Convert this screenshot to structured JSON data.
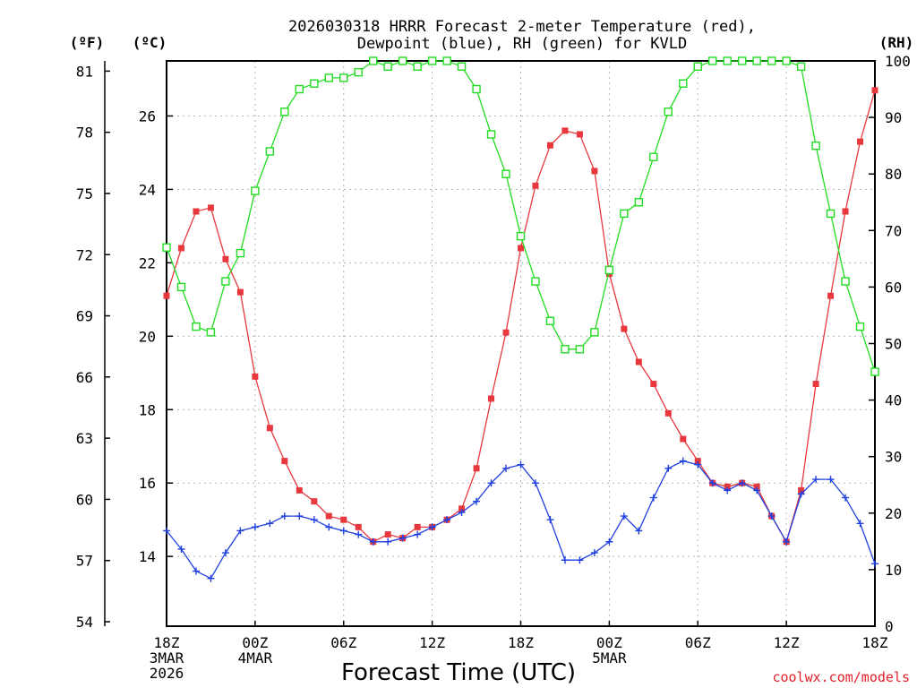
{
  "chart_data": {
    "type": "line",
    "title_line1": "2026030318 HRRR Forecast 2-meter Temperature (red),",
    "title_line2": "Dewpoint (blue), RH (green) for KVLD",
    "xlabel": "Forecast Time (UTC)",
    "credit": "coolwx.com/models",
    "unit_f": "(ºF)",
    "unit_c": "(ºC)",
    "unit_rh": "(RH)",
    "x_hours": [
      0,
      1,
      2,
      3,
      4,
      5,
      6,
      7,
      8,
      9,
      10,
      11,
      12,
      13,
      14,
      15,
      16,
      17,
      18,
      19,
      20,
      21,
      22,
      23,
      24,
      25,
      26,
      27,
      28,
      29,
      30,
      31,
      32,
      33,
      34,
      35,
      36,
      37,
      38,
      39,
      40,
      41,
      42,
      43,
      44,
      45,
      46,
      47,
      48
    ],
    "x_range_hours": [
      0,
      48
    ],
    "x_ticks": [
      {
        "hour": 0,
        "lines": [
          "18Z",
          "3MAR",
          "2026"
        ]
      },
      {
        "hour": 6,
        "lines": [
          "00Z",
          "4MAR"
        ]
      },
      {
        "hour": 12,
        "lines": [
          "06Z"
        ]
      },
      {
        "hour": 18,
        "lines": [
          "12Z"
        ]
      },
      {
        "hour": 24,
        "lines": [
          "18Z"
        ]
      },
      {
        "hour": 30,
        "lines": [
          "00Z",
          "5MAR"
        ]
      },
      {
        "hour": 36,
        "lines": [
          "06Z"
        ]
      },
      {
        "hour": 42,
        "lines": [
          "12Z"
        ]
      },
      {
        "hour": 48,
        "lines": [
          "18Z"
        ]
      }
    ],
    "y_celsius_range": [
      12.1,
      27.5
    ],
    "y_celsius_ticks": [
      "14",
      "16",
      "18",
      "20",
      "22",
      "24",
      "26"
    ],
    "y_fahrenheit_ticks": [
      "54",
      "57",
      "60",
      "63",
      "66",
      "69",
      "72",
      "75",
      "78",
      "81"
    ],
    "y_rh_range": [
      0,
      100
    ],
    "y_rh_ticks": [
      "0",
      "10",
      "20",
      "30",
      "40",
      "50",
      "60",
      "70",
      "80",
      "90",
      "100"
    ],
    "series": [
      {
        "name": "Temperature",
        "axis": "celsius",
        "color": "#e8383e",
        "marker": "filled-square",
        "values": [
          21.1,
          22.4,
          23.4,
          23.5,
          22.1,
          21.2,
          18.9,
          17.5,
          16.6,
          15.8,
          15.5,
          15.1,
          15.0,
          14.8,
          14.4,
          14.6,
          14.5,
          14.8,
          14.8,
          15.0,
          15.3,
          16.4,
          18.3,
          20.1,
          22.4,
          24.1,
          25.2,
          25.6,
          25.5,
          24.5,
          21.7,
          20.2,
          19.3,
          18.7,
          17.9,
          17.2,
          16.6,
          16.0,
          15.9,
          16.0,
          15.9,
          15.1,
          14.4,
          15.8,
          18.7,
          21.1,
          23.4,
          25.3,
          26.7
        ]
      },
      {
        "name": "Dewpoint",
        "axis": "celsius",
        "color": "#1f3fe0",
        "marker": "plus",
        "values": [
          14.7,
          14.2,
          13.6,
          13.4,
          14.1,
          14.7,
          14.8,
          14.9,
          15.1,
          15.1,
          15.0,
          14.8,
          14.7,
          14.6,
          14.4,
          14.4,
          14.5,
          14.6,
          14.8,
          15.0,
          15.2,
          15.5,
          16.0,
          16.4,
          16.5,
          16.0,
          15.0,
          13.9,
          13.9,
          14.1,
          14.4,
          15.1,
          14.7,
          15.6,
          16.4,
          16.6,
          16.5,
          16.0,
          15.8,
          16.0,
          15.8,
          15.1,
          14.4,
          15.7,
          16.1,
          16.1,
          15.6,
          14.9,
          13.8
        ]
      },
      {
        "name": "RH",
        "axis": "rh",
        "color": "#22dd22",
        "marker": "open-square",
        "values": [
          67,
          60,
          53,
          52,
          61,
          66,
          77,
          84,
          91,
          95,
          96,
          97,
          97,
          98,
          100,
          99,
          100,
          99,
          100,
          100,
          99,
          95,
          87,
          80,
          69,
          61,
          54,
          49,
          49,
          52,
          63,
          73,
          75,
          83,
          91,
          96,
          99,
          100,
          100,
          100,
          100,
          100,
          100,
          99,
          85,
          73,
          61,
          53,
          45
        ]
      }
    ]
  }
}
